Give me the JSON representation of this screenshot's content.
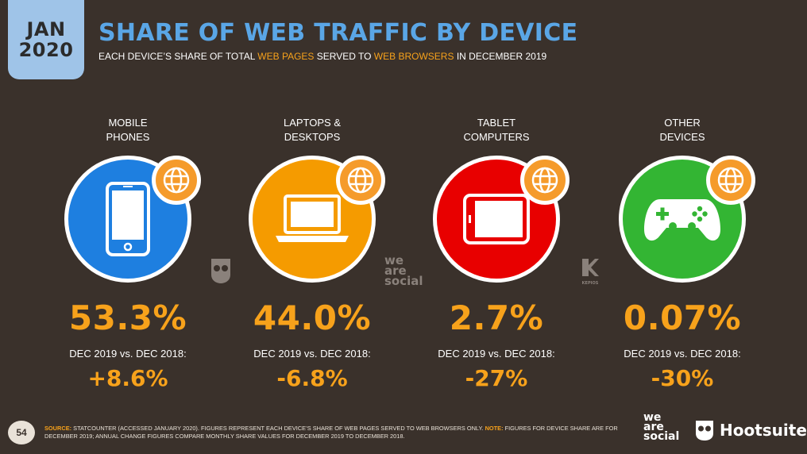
{
  "header": {
    "date_month": "JAN",
    "date_year": "2020",
    "title": "SHARE OF WEB TRAFFIC BY DEVICE",
    "subtitle_parts": [
      "EACH DEVICE’S SHARE OF TOTAL ",
      "WEB PAGES",
      " SERVED TO ",
      "WEB BROWSERS",
      " IN DECEMBER 2019"
    ]
  },
  "comparison_label": "DEC 2019 vs. DEC 2018:",
  "devices": [
    {
      "label_line1": "MOBILE",
      "label_line2": "PHONES",
      "share": "53.3%",
      "change": "+8.6%",
      "color": "#1e7fe0",
      "icon": "mobile-phone-icon"
    },
    {
      "label_line1": "LAPTOPS &",
      "label_line2": "DESKTOPS",
      "share": "44.0%",
      "change": "-6.8%",
      "color": "#f59b00",
      "icon": "laptop-icon"
    },
    {
      "label_line1": "TABLET",
      "label_line2": "COMPUTERS",
      "share": "2.7%",
      "change": "-27%",
      "color": "#e80000",
      "icon": "tablet-icon"
    },
    {
      "label_line1": "OTHER",
      "label_line2": "DEVICES",
      "share": "0.07%",
      "change": "-30%",
      "color": "#33b533",
      "icon": "game-controller-icon"
    }
  ],
  "watermarks": {
    "we_are_social": [
      "we",
      "are",
      "social"
    ],
    "kepios": "KEPIOS"
  },
  "footer": {
    "page_number": "54",
    "source_label": "SOURCE:",
    "source_text": " STATCOUNTER (ACCESSED JANUARY 2020). FIGURES REPRESENT EACH DEVICE’S SHARE OF WEB PAGES SERVED TO WEB BROWSERS ONLY. ",
    "note_label": "NOTE:",
    "note_text": " FIGURES FOR DEVICE SHARE ARE FOR DECEMBER 2019; ANNUAL CHANGE FIGURES COMPARE MONTHLY SHARE VALUES FOR DECEMBER 2019 TO DECEMBER 2018.",
    "logo_we": "we",
    "logo_are": "are",
    "logo_social": "social",
    "logo_hootsuite": "Hootsuite"
  }
}
